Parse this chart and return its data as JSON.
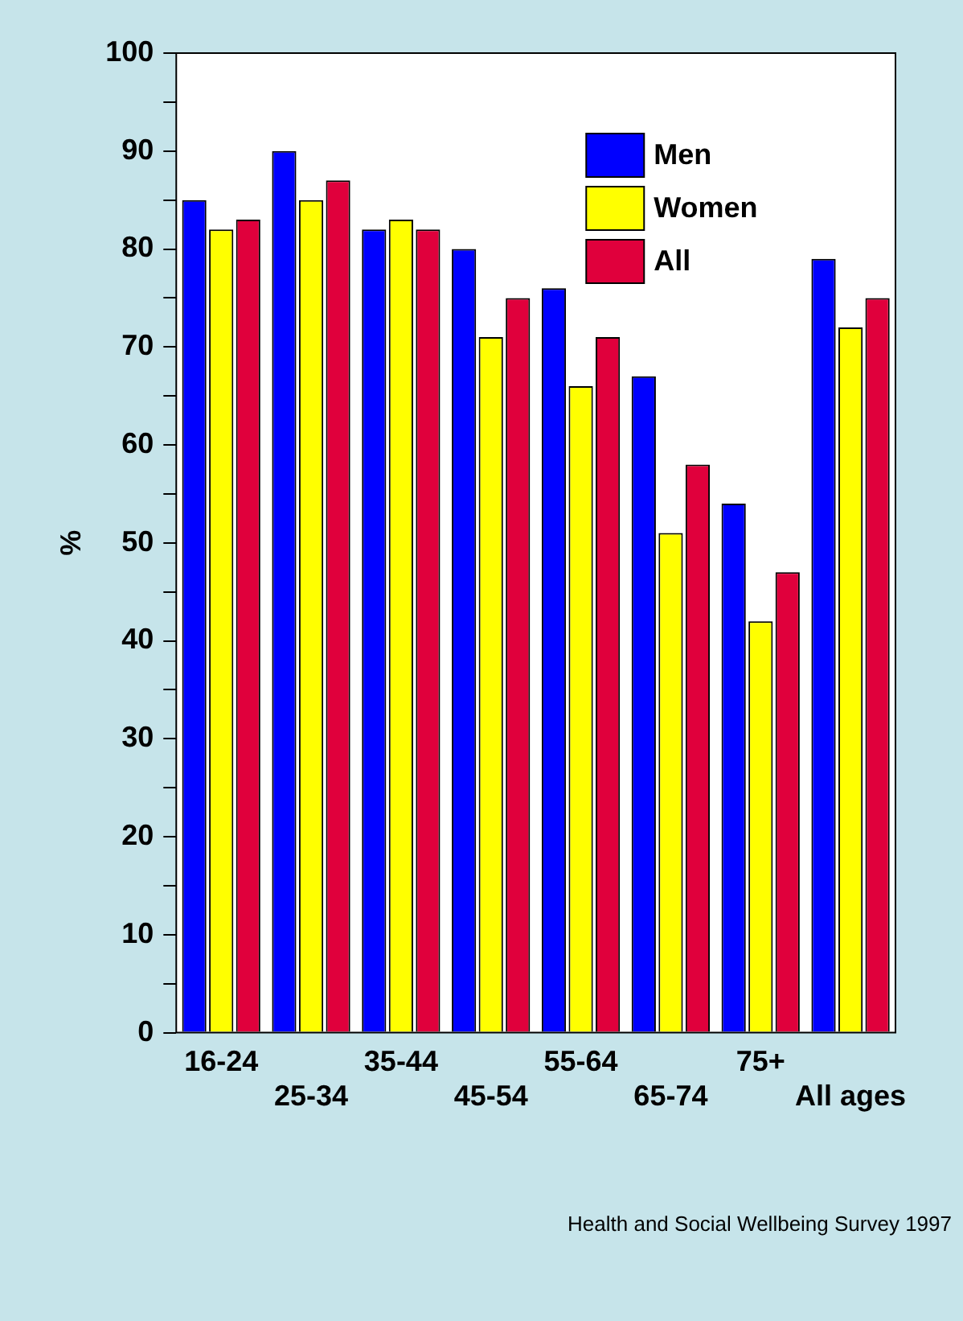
{
  "chart_data": {
    "type": "bar",
    "ylabel": "%",
    "categories": [
      "16-24",
      "25-34",
      "35-44",
      "45-54",
      "55-64",
      "65-74",
      "75+",
      "All ages"
    ],
    "series": [
      {
        "name": "Men",
        "color": "#0000ff",
        "values": [
          85,
          90,
          82,
          80,
          76,
          67,
          54,
          79
        ]
      },
      {
        "name": "Women",
        "color": "#ffff00",
        "values": [
          82,
          85,
          83,
          71,
          66,
          51,
          42,
          72
        ]
      },
      {
        "name": "All",
        "color": "#e0003c",
        "values": [
          83,
          87,
          82,
          75,
          71,
          58,
          47,
          75
        ]
      }
    ],
    "ylim": [
      0,
      100
    ],
    "yticks": [
      0,
      {
        "value": 5,
        "label": null
      },
      10,
      {
        "value": 15,
        "label": null
      },
      20,
      {
        "value": 25,
        "label": null
      },
      30,
      {
        "value": 35,
        "label": null
      },
      40,
      {
        "value": 45,
        "label": null
      },
      50,
      {
        "value": 55,
        "label": null
      },
      60,
      {
        "value": 65,
        "label": null
      },
      70,
      {
        "value": 75,
        "label": null
      },
      80,
      {
        "value": 85,
        "label": null
      },
      90,
      {
        "value": 95,
        "label": null
      },
      100
    ],
    "grid": false,
    "legend": "top right",
    "annotations": [
      "Health and Social Wellbeing Survey 1997"
    ]
  }
}
